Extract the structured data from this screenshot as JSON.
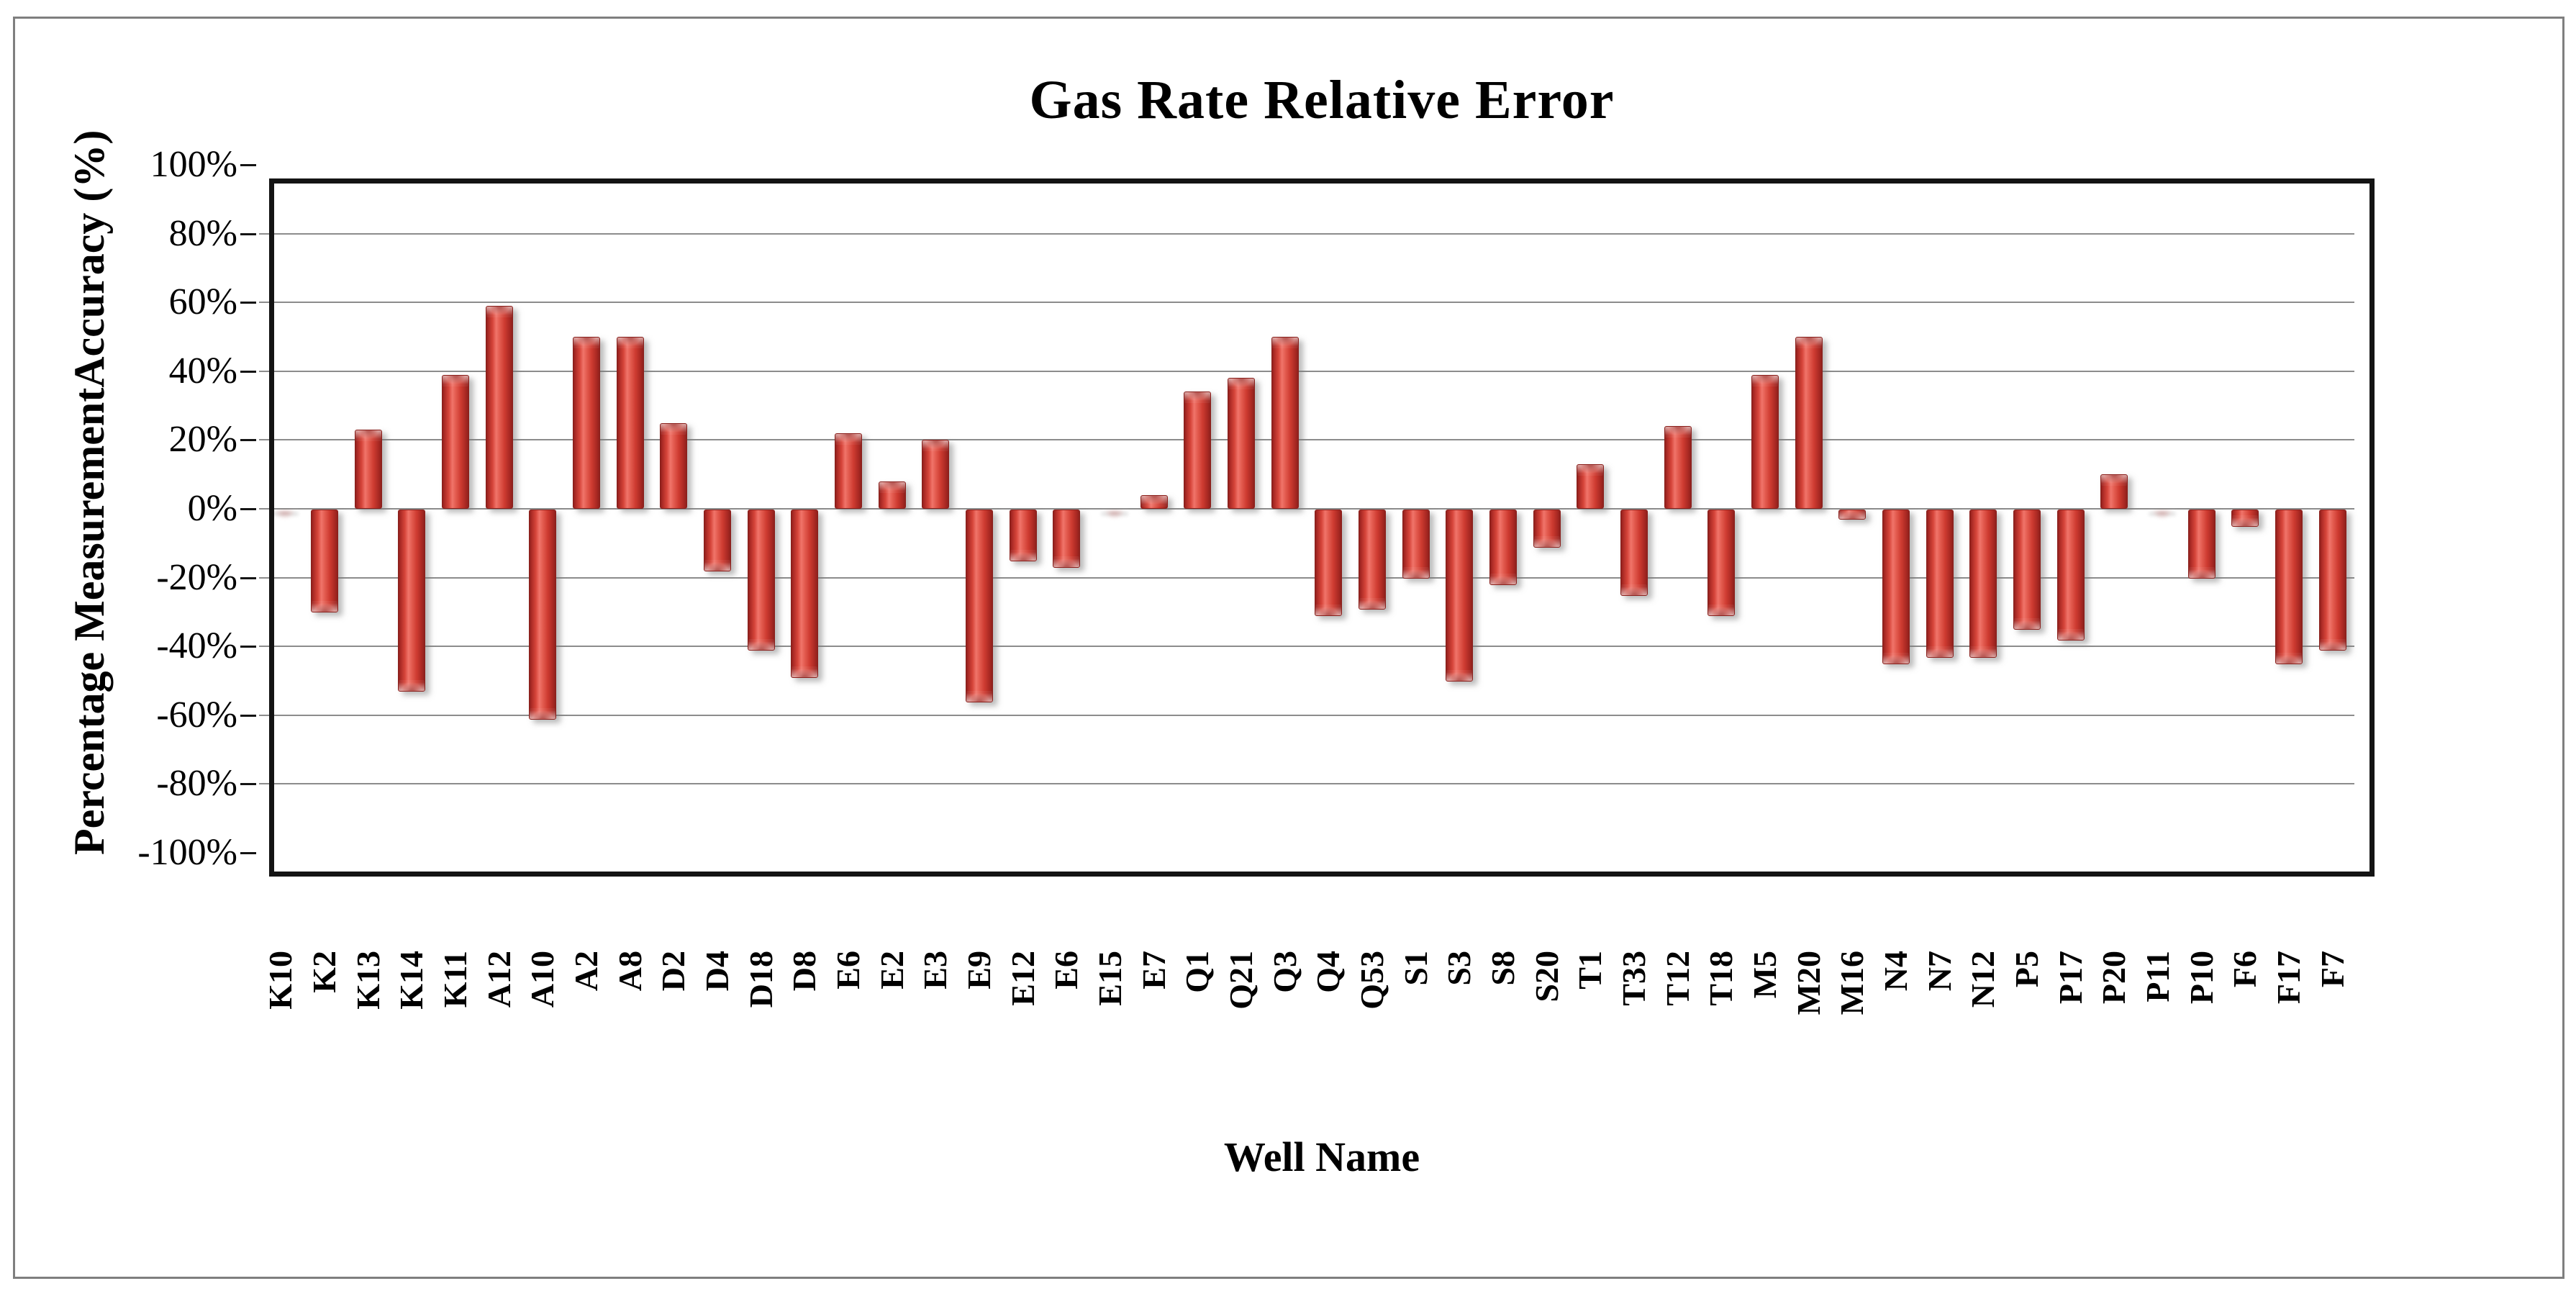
{
  "chart_data": {
    "type": "bar",
    "title": "Gas Rate Relative Error",
    "xlabel": "Well Name",
    "ylabel": "Percentage MeasurementAccuracy (%)",
    "categories": [
      "K10",
      "K2",
      "K13",
      "K14",
      "K11",
      "A12",
      "A10",
      "A2",
      "A8",
      "D2",
      "D4",
      "D18",
      "D8",
      "E6",
      "E2",
      "E3",
      "E9",
      "E12",
      "E6",
      "E15",
      "E7",
      "Q1",
      "Q21",
      "Q3",
      "Q4",
      "Q53",
      "S1",
      "S3",
      "S8",
      "S20",
      "T1",
      "T33",
      "T12",
      "T18",
      "M5",
      "M20",
      "M16",
      "N4",
      "N7",
      "N12",
      "P5",
      "P17",
      "P20",
      "P11",
      "P10",
      "F6",
      "F17",
      "F7"
    ],
    "values": [
      0,
      -30,
      23,
      -53,
      39,
      59,
      -61,
      50,
      50,
      25,
      -18,
      -41,
      -49,
      22,
      8,
      20,
      -56,
      -15,
      -17,
      0,
      4,
      34,
      38,
      50,
      -31,
      -29,
      -20,
      -50,
      -22,
      -11,
      13,
      -25,
      24,
      -31,
      39,
      50,
      -3,
      -45,
      -43,
      -43,
      -35,
      -38,
      10,
      0,
      -20,
      -5,
      -45,
      -41
    ],
    "ylim": [
      -100,
      100
    ],
    "ytick_step": 20,
    "ytick_labels": [
      "100%",
      "80%",
      "60%",
      "40%",
      "20%",
      "0%",
      "-20%",
      "-40%",
      "-60%",
      "-80%",
      "-100%"
    ],
    "grid": "horizontal-on",
    "legend": "none",
    "colors": {
      "bar_main": "#ce3b31",
      "bar_highlight": "#f0746a",
      "bar_edge": "#8f211d",
      "gridline": "#8c8c8c",
      "plot_border": "#141414",
      "frame_border": "#7f7f7f",
      "background": "#ffffff"
    }
  }
}
